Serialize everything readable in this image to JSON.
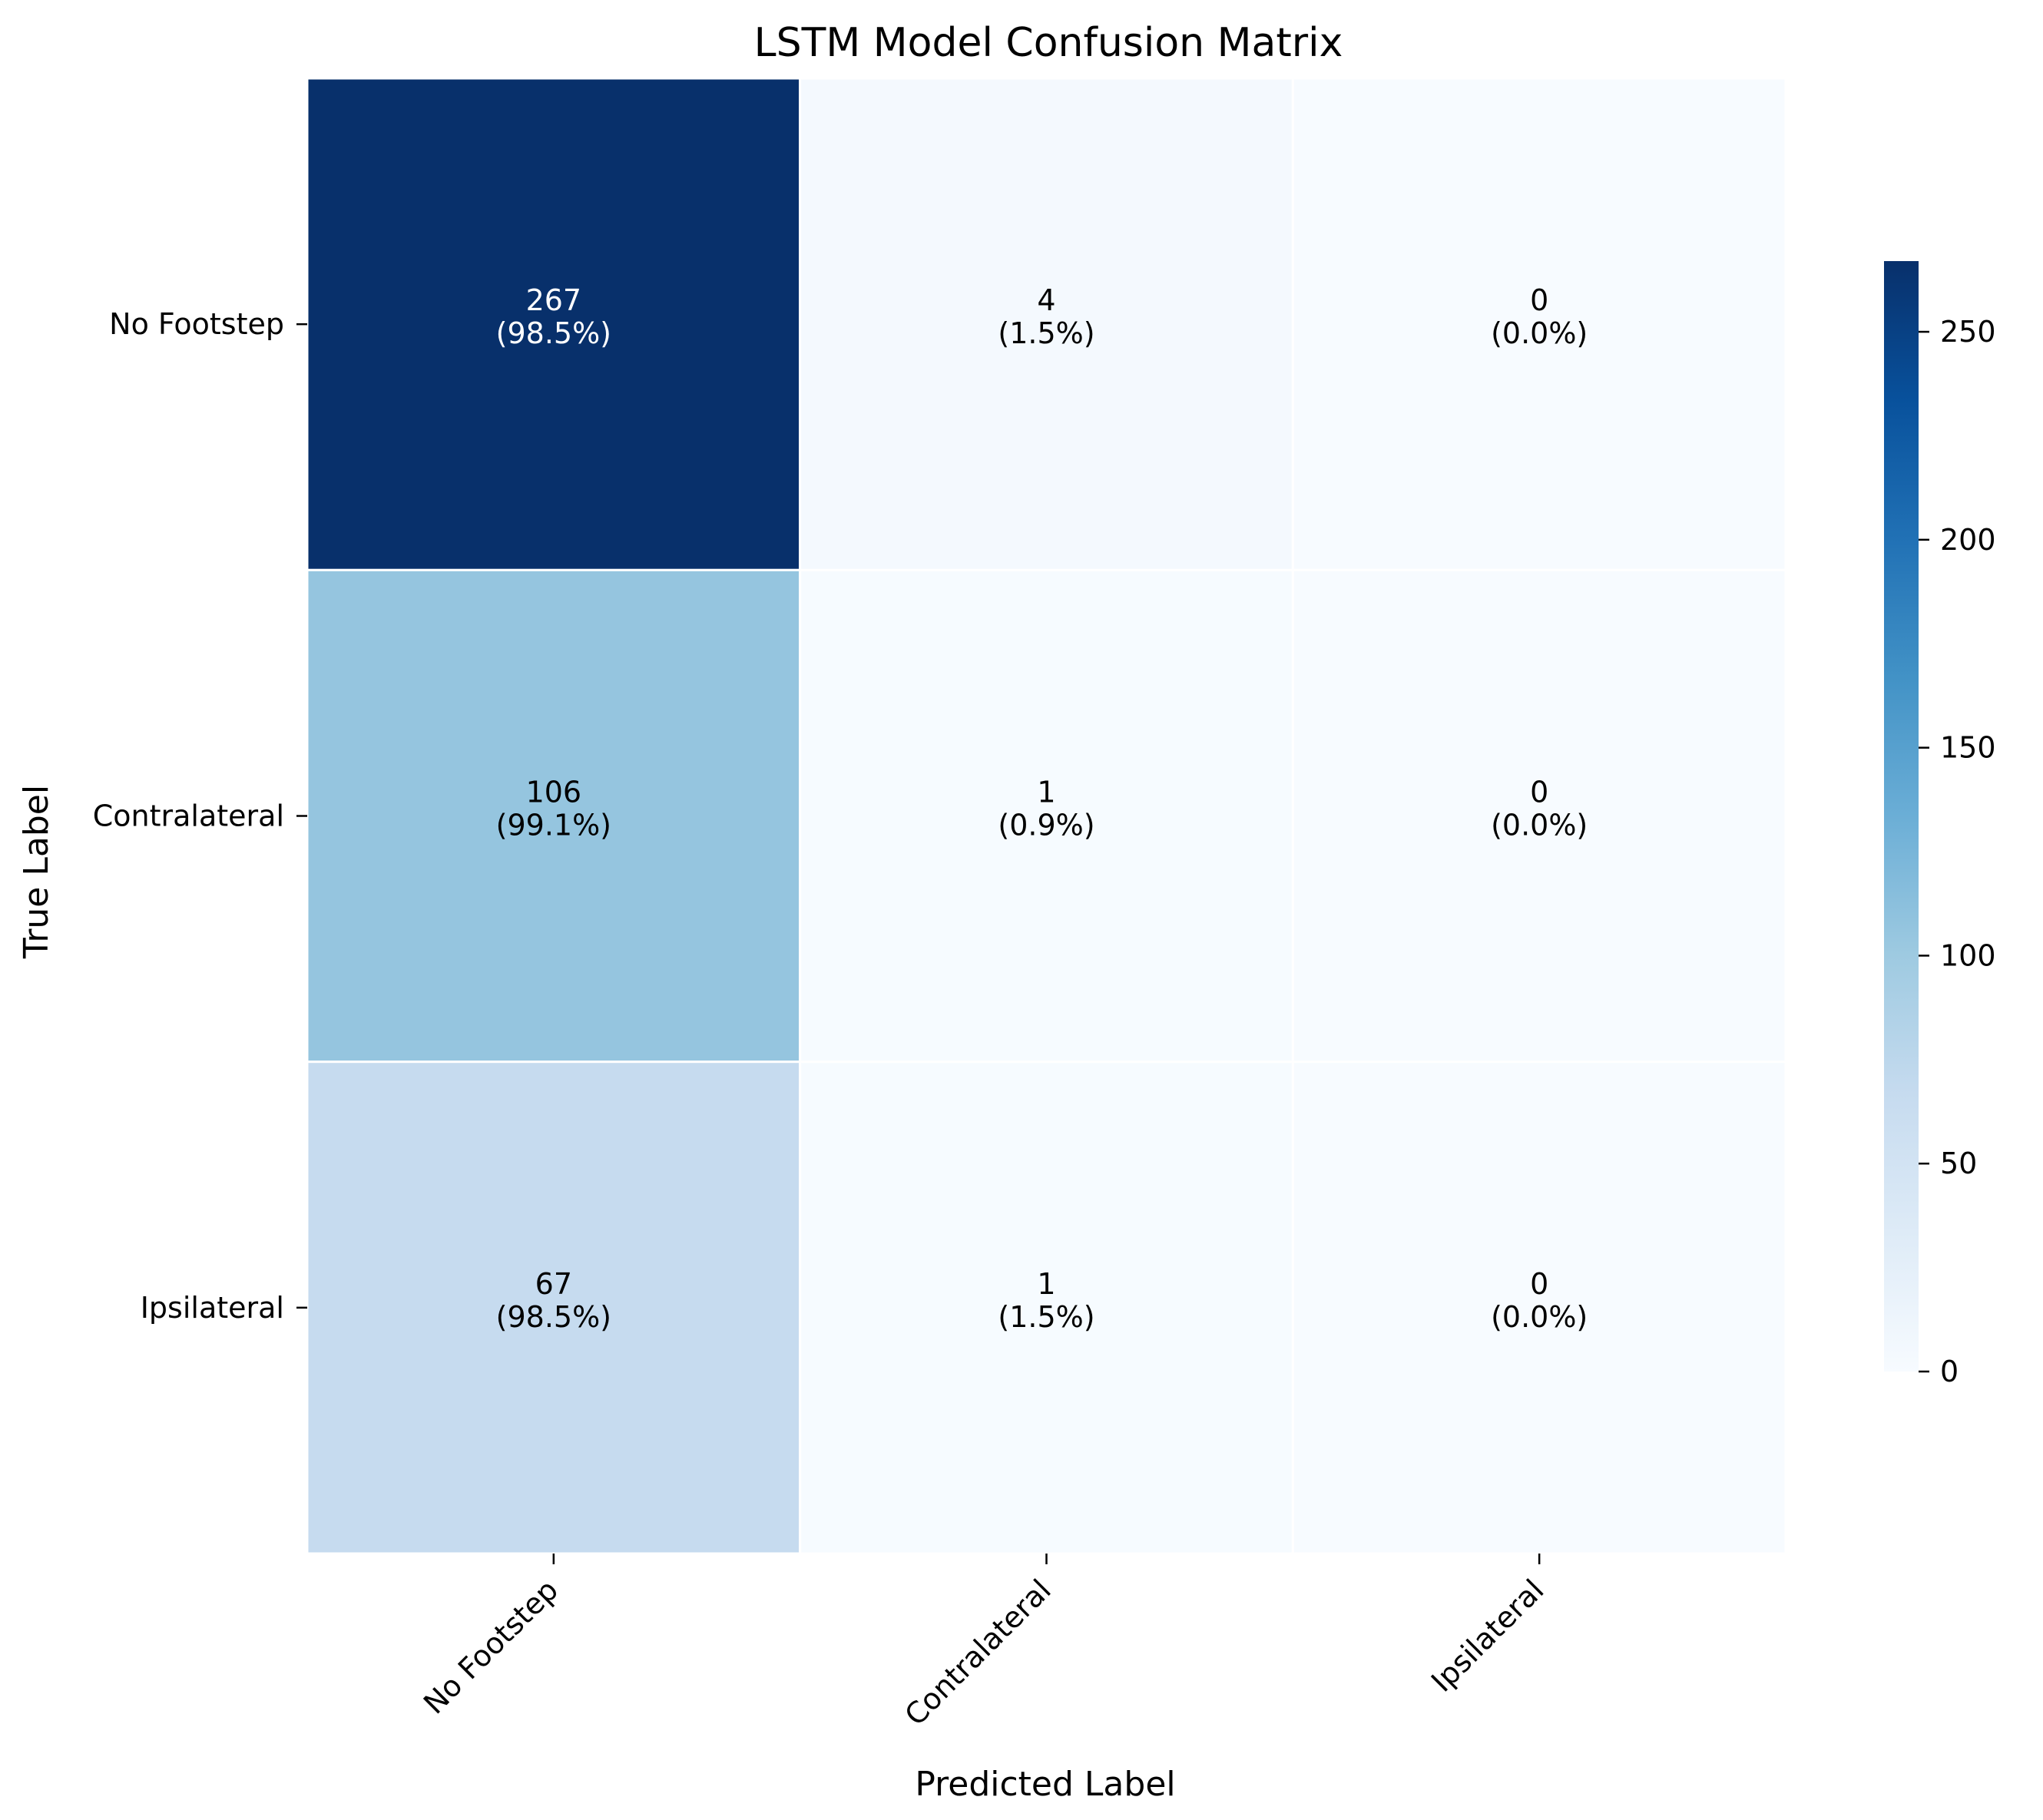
{
  "chart_data": {
    "type": "heatmap",
    "title": "LSTM Model Confusion Matrix",
    "xlabel": "Predicted Label",
    "ylabel": "True Label",
    "x_categories": [
      "No Footstep",
      "Contralateral",
      "Ipsilateral"
    ],
    "y_categories": [
      "No Footstep",
      "Contralateral",
      "Ipsilateral"
    ],
    "values": [
      [
        267,
        4,
        0
      ],
      [
        106,
        1,
        0
      ],
      [
        67,
        1,
        0
      ]
    ],
    "percent_labels": [
      [
        "(98.5%)",
        "(1.5%)",
        "(0.0%)"
      ],
      [
        "(99.1%)",
        "(0.9%)",
        "(0.0%)"
      ],
      [
        "(98.5%)",
        "(1.5%)",
        "(0.0%)"
      ]
    ],
    "colormap": "Blues",
    "colorbar": {
      "range": [
        0,
        267
      ],
      "ticks": [
        0,
        50,
        100,
        150,
        200,
        250
      ]
    },
    "colors": {
      "low": "#f7fbff",
      "high": "#08306b",
      "cell_border": "#ffffff"
    },
    "grid": false,
    "legend": "none"
  }
}
